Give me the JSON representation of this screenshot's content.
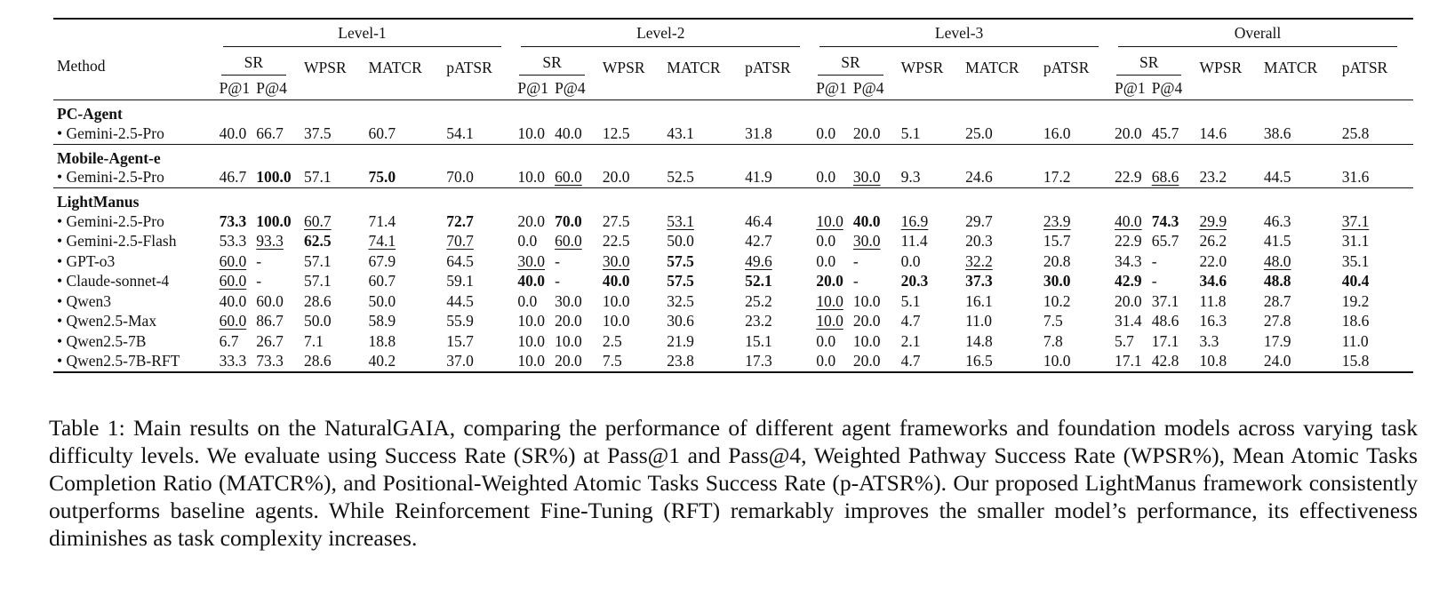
{
  "header": {
    "method_label": "Method",
    "levels": [
      "Level-1",
      "Level-2",
      "Level-3",
      "Overall"
    ],
    "sr_label": "SR",
    "p1_label": "P@1",
    "p4_label": "P@4",
    "metric_labels": [
      "WPSR",
      "MATCR",
      "pATSR"
    ]
  },
  "groups": [
    {
      "name": "PC-Agent",
      "rows": [
        {
          "method": "• Gemini-2.5-Pro",
          "cells": [
            {
              "v": "40.0"
            },
            {
              "v": "66.7"
            },
            {
              "v": "37.5"
            },
            {
              "v": "60.7"
            },
            {
              "v": "54.1"
            },
            {
              "v": "10.0"
            },
            {
              "v": "40.0"
            },
            {
              "v": "12.5"
            },
            {
              "v": "43.1"
            },
            {
              "v": "31.8"
            },
            {
              "v": "0.0"
            },
            {
              "v": "20.0"
            },
            {
              "v": "5.1"
            },
            {
              "v": "25.0"
            },
            {
              "v": "16.0"
            },
            {
              "v": "20.0"
            },
            {
              "v": "45.7"
            },
            {
              "v": "14.6"
            },
            {
              "v": "38.6"
            },
            {
              "v": "25.8"
            }
          ]
        }
      ]
    },
    {
      "name": "Mobile-Agent-e",
      "rows": [
        {
          "method": "• Gemini-2.5-Pro",
          "cells": [
            {
              "v": "46.7"
            },
            {
              "v": "100.0",
              "s": "b"
            },
            {
              "v": "57.1"
            },
            {
              "v": "75.0",
              "s": "b"
            },
            {
              "v": "70.0"
            },
            {
              "v": "10.0"
            },
            {
              "v": "60.0",
              "s": "u"
            },
            {
              "v": "20.0"
            },
            {
              "v": "52.5"
            },
            {
              "v": "41.9"
            },
            {
              "v": "0.0"
            },
            {
              "v": "30.0",
              "s": "u"
            },
            {
              "v": "9.3"
            },
            {
              "v": "24.6"
            },
            {
              "v": "17.2"
            },
            {
              "v": "22.9"
            },
            {
              "v": "68.6",
              "s": "u"
            },
            {
              "v": "23.2"
            },
            {
              "v": "44.5"
            },
            {
              "v": "31.6"
            }
          ]
        }
      ]
    },
    {
      "name": "LightManus",
      "rows": [
        {
          "method": "• Gemini-2.5-Pro",
          "cells": [
            {
              "v": "73.3",
              "s": "b"
            },
            {
              "v": "100.0",
              "s": "b"
            },
            {
              "v": "60.7",
              "s": "u"
            },
            {
              "v": "71.4"
            },
            {
              "v": "72.7",
              "s": "b"
            },
            {
              "v": "20.0"
            },
            {
              "v": "70.0",
              "s": "b"
            },
            {
              "v": "27.5"
            },
            {
              "v": "53.1",
              "s": "u"
            },
            {
              "v": "46.4"
            },
            {
              "v": "10.0",
              "s": "u"
            },
            {
              "v": "40.0",
              "s": "b"
            },
            {
              "v": "16.9",
              "s": "u"
            },
            {
              "v": "29.7"
            },
            {
              "v": "23.9",
              "s": "u"
            },
            {
              "v": "40.0",
              "s": "u"
            },
            {
              "v": "74.3",
              "s": "b"
            },
            {
              "v": "29.9",
              "s": "u"
            },
            {
              "v": "46.3"
            },
            {
              "v": "37.1",
              "s": "u"
            }
          ]
        },
        {
          "method": "• Gemini-2.5-Flash",
          "cells": [
            {
              "v": "53.3"
            },
            {
              "v": "93.3",
              "s": "u"
            },
            {
              "v": "62.5",
              "s": "b"
            },
            {
              "v": "74.1",
              "s": "u"
            },
            {
              "v": "70.7",
              "s": "u"
            },
            {
              "v": "0.0"
            },
            {
              "v": "60.0",
              "s": "u"
            },
            {
              "v": "22.5"
            },
            {
              "v": "50.0"
            },
            {
              "v": "42.7"
            },
            {
              "v": "0.0"
            },
            {
              "v": "30.0",
              "s": "u"
            },
            {
              "v": "11.4"
            },
            {
              "v": "20.3"
            },
            {
              "v": "15.7"
            },
            {
              "v": "22.9"
            },
            {
              "v": "65.7"
            },
            {
              "v": "26.2"
            },
            {
              "v": "41.5"
            },
            {
              "v": "31.1"
            }
          ]
        },
        {
          "method": "• GPT-o3",
          "cells": [
            {
              "v": "60.0",
              "s": "u"
            },
            {
              "v": "-"
            },
            {
              "v": "57.1"
            },
            {
              "v": "67.9"
            },
            {
              "v": "64.5"
            },
            {
              "v": "30.0",
              "s": "u"
            },
            {
              "v": "-"
            },
            {
              "v": "30.0",
              "s": "u"
            },
            {
              "v": "57.5",
              "s": "b"
            },
            {
              "v": "49.6",
              "s": "u"
            },
            {
              "v": "0.0"
            },
            {
              "v": "-"
            },
            {
              "v": "0.0"
            },
            {
              "v": "32.2",
              "s": "u"
            },
            {
              "v": "20.8"
            },
            {
              "v": "34.3"
            },
            {
              "v": "-"
            },
            {
              "v": "22.0"
            },
            {
              "v": "48.0",
              "s": "u"
            },
            {
              "v": "35.1"
            }
          ]
        },
        {
          "method": "• Claude-sonnet-4",
          "cells": [
            {
              "v": "60.0",
              "s": "u"
            },
            {
              "v": "-"
            },
            {
              "v": "57.1"
            },
            {
              "v": "60.7"
            },
            {
              "v": "59.1"
            },
            {
              "v": "40.0",
              "s": "b"
            },
            {
              "v": "-"
            },
            {
              "v": "40.0",
              "s": "b"
            },
            {
              "v": "57.5",
              "s": "b"
            },
            {
              "v": "52.1",
              "s": "b"
            },
            {
              "v": "20.0",
              "s": "b"
            },
            {
              "v": "-"
            },
            {
              "v": "20.3",
              "s": "b"
            },
            {
              "v": "37.3",
              "s": "b"
            },
            {
              "v": "30.0",
              "s": "b"
            },
            {
              "v": "42.9",
              "s": "b"
            },
            {
              "v": "-"
            },
            {
              "v": "34.6",
              "s": "b"
            },
            {
              "v": "48.8",
              "s": "b"
            },
            {
              "v": "40.4",
              "s": "b"
            }
          ]
        },
        {
          "method": "• Qwen3",
          "cells": [
            {
              "v": "40.0"
            },
            {
              "v": "60.0"
            },
            {
              "v": "28.6"
            },
            {
              "v": "50.0"
            },
            {
              "v": "44.5"
            },
            {
              "v": "0.0"
            },
            {
              "v": "30.0"
            },
            {
              "v": "10.0"
            },
            {
              "v": "32.5"
            },
            {
              "v": "25.2"
            },
            {
              "v": "10.0",
              "s": "u"
            },
            {
              "v": "10.0"
            },
            {
              "v": "5.1"
            },
            {
              "v": "16.1"
            },
            {
              "v": "10.2"
            },
            {
              "v": "20.0"
            },
            {
              "v": "37.1"
            },
            {
              "v": "11.8"
            },
            {
              "v": "28.7"
            },
            {
              "v": "19.2"
            }
          ]
        },
        {
          "method": "• Qwen2.5-Max",
          "cells": [
            {
              "v": "60.0",
              "s": "u"
            },
            {
              "v": "86.7"
            },
            {
              "v": "50.0"
            },
            {
              "v": "58.9"
            },
            {
              "v": "55.9"
            },
            {
              "v": "10.0"
            },
            {
              "v": "20.0"
            },
            {
              "v": "10.0"
            },
            {
              "v": "30.6"
            },
            {
              "v": "23.2"
            },
            {
              "v": "10.0",
              "s": "u"
            },
            {
              "v": "20.0"
            },
            {
              "v": "4.7"
            },
            {
              "v": "11.0"
            },
            {
              "v": "7.5"
            },
            {
              "v": "31.4"
            },
            {
              "v": "48.6"
            },
            {
              "v": "16.3"
            },
            {
              "v": "27.8"
            },
            {
              "v": "18.6"
            }
          ]
        },
        {
          "method": "• Qwen2.5-7B",
          "cells": [
            {
              "v": "6.7"
            },
            {
              "v": "26.7"
            },
            {
              "v": "7.1"
            },
            {
              "v": "18.8"
            },
            {
              "v": "15.7"
            },
            {
              "v": "10.0"
            },
            {
              "v": "10.0"
            },
            {
              "v": "2.5"
            },
            {
              "v": "21.9"
            },
            {
              "v": "15.1"
            },
            {
              "v": "0.0"
            },
            {
              "v": "10.0"
            },
            {
              "v": "2.1"
            },
            {
              "v": "14.8"
            },
            {
              "v": "7.8"
            },
            {
              "v": "5.7"
            },
            {
              "v": "17.1"
            },
            {
              "v": "3.3"
            },
            {
              "v": "17.9"
            },
            {
              "v": "11.0"
            }
          ]
        },
        {
          "method": "• Qwen2.5-7B-RFT",
          "cells": [
            {
              "v": "33.3"
            },
            {
              "v": "73.3"
            },
            {
              "v": "28.6"
            },
            {
              "v": "40.2"
            },
            {
              "v": "37.0"
            },
            {
              "v": "10.0"
            },
            {
              "v": "20.0"
            },
            {
              "v": "7.5"
            },
            {
              "v": "23.8"
            },
            {
              "v": "17.3"
            },
            {
              "v": "0.0"
            },
            {
              "v": "20.0"
            },
            {
              "v": "4.7"
            },
            {
              "v": "16.5"
            },
            {
              "v": "10.0"
            },
            {
              "v": "17.1"
            },
            {
              "v": "42.8"
            },
            {
              "v": "10.8"
            },
            {
              "v": "24.0"
            },
            {
              "v": "15.8"
            }
          ]
        }
      ]
    }
  ],
  "caption": "Table 1: Main results on the NaturalGAIA, comparing the performance of different agent frameworks and foundation models across varying task difficulty levels. We evaluate using Success Rate (SR%) at Pass@1 and Pass@4, Weighted Pathway Success Rate (WPSR%), Mean Atomic Tasks Completion Ratio (MATCR%), and Positional-Weighted Atomic Tasks Success Rate (p-ATSR%). Our proposed LightManus framework consistently outperforms baseline agents. While Reinforcement Fine-Tuning (RFT) remarkably improves the smaller model’s performance, its effectiveness diminishes as task complexity increases."
}
